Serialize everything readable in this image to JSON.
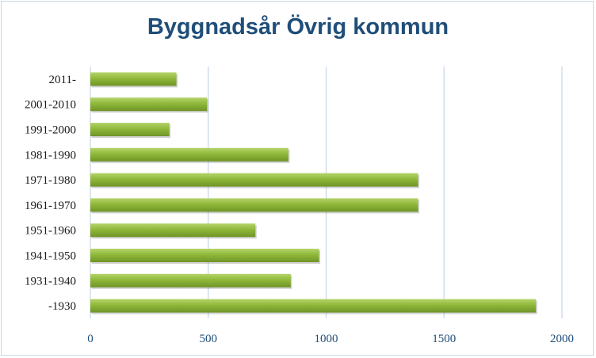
{
  "chart_data": {
    "type": "bar",
    "orientation": "horizontal",
    "title": "Byggnadsår Övrig kommun",
    "xlabel": "",
    "ylabel": "",
    "categories": [
      "2011-",
      "2001-2010",
      "1991-2000",
      "1981-1990",
      "1971-1980",
      "1961-1970",
      "1951-1960",
      "1941-1950",
      "1931-1940",
      "-1930"
    ],
    "values": [
      365,
      495,
      335,
      840,
      1390,
      1390,
      700,
      970,
      850,
      1890
    ],
    "xlim": [
      0,
      2000
    ],
    "xticks": [
      "0",
      "500",
      "1000",
      "1500",
      "2000"
    ],
    "grid": true,
    "legend": "none",
    "bar_color": "#8fb83a",
    "bar_color_light": "#b5d46a",
    "bar_color_dark": "#6f9426",
    "title_color": "#1f4e79",
    "grid_color": "#c7d6e6"
  }
}
